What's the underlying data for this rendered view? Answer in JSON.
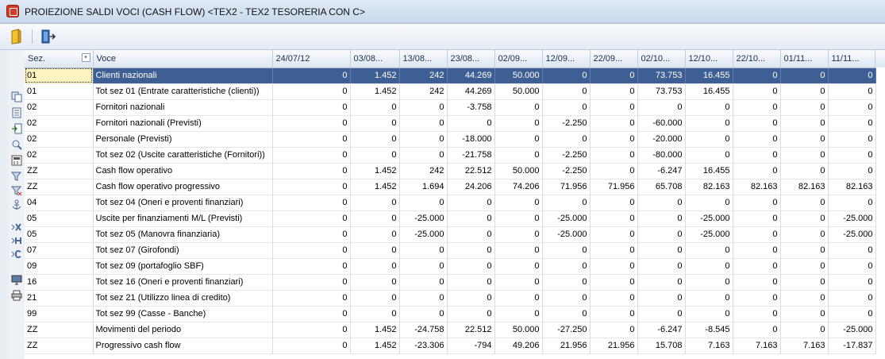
{
  "window": {
    "title": "PROIEZIONE SALDI VOCI (CASH FLOW) <TEX2 - TEX2 TESORERIA CON C>"
  },
  "toolbar": {
    "buttons": [
      "open-folder-icon",
      "exit-door-icon"
    ]
  },
  "grid": {
    "columns": [
      "Sez.",
      "Voce",
      "24/07/12",
      "03/08...",
      "13/08...",
      "23/08...",
      "02/09...",
      "12/09...",
      "22/09...",
      "02/10...",
      "12/10...",
      "22/10...",
      "01/11...",
      "11/11..."
    ],
    "rows": [
      [
        "01",
        "Clienti nazionali",
        "0",
        "1.452",
        "242",
        "44.269",
        "50.000",
        "0",
        "0",
        "73.753",
        "16.455",
        "0",
        "0",
        "0"
      ],
      [
        "01",
        "Tot sez 01 (Entrate caratteristiche (clienti))",
        "0",
        "1.452",
        "242",
        "44.269",
        "50.000",
        "0",
        "0",
        "73.753",
        "16.455",
        "0",
        "0",
        "0"
      ],
      [
        "02",
        "Fornitori nazionali",
        "0",
        "0",
        "0",
        "-3.758",
        "0",
        "0",
        "0",
        "0",
        "0",
        "0",
        "0",
        "0"
      ],
      [
        "02",
        "Fornitori nazionali (Previsti)",
        "0",
        "0",
        "0",
        "0",
        "0",
        "-2.250",
        "0",
        "-60.000",
        "0",
        "0",
        "0",
        "0"
      ],
      [
        "02",
        "Personale (Previsti)",
        "0",
        "0",
        "0",
        "-18.000",
        "0",
        "0",
        "0",
        "-20.000",
        "0",
        "0",
        "0",
        "0"
      ],
      [
        "02",
        "Tot sez 02 (Uscite caratteristiche (Fornitori))",
        "0",
        "0",
        "0",
        "-21.758",
        "0",
        "-2.250",
        "0",
        "-80.000",
        "0",
        "0",
        "0",
        "0"
      ],
      [
        "ZZ",
        "Cash flow operativo",
        "0",
        "1.452",
        "242",
        "22.512",
        "50.000",
        "-2.250",
        "0",
        "-6.247",
        "16.455",
        "0",
        "0",
        "0"
      ],
      [
        "ZZ",
        "Cash flow operativo progressivo",
        "0",
        "1.452",
        "1.694",
        "24.206",
        "74.206",
        "71.956",
        "71.956",
        "65.708",
        "82.163",
        "82.163",
        "82.163",
        "82.163"
      ],
      [
        "04",
        "Tot sez 04 (Oneri e proventi finanziari)",
        "0",
        "0",
        "0",
        "0",
        "0",
        "0",
        "0",
        "0",
        "0",
        "0",
        "0",
        "0"
      ],
      [
        "05",
        "Uscite per finanziamenti M/L (Previsti)",
        "0",
        "0",
        "-25.000",
        "0",
        "0",
        "-25.000",
        "0",
        "0",
        "-25.000",
        "0",
        "0",
        "-25.000"
      ],
      [
        "05",
        "Tot sez 05 (Manovra finanziaria)",
        "0",
        "0",
        "-25.000",
        "0",
        "0",
        "-25.000",
        "0",
        "0",
        "-25.000",
        "0",
        "0",
        "-25.000"
      ],
      [
        "07",
        "Tot sez 07 (Girofondi)",
        "0",
        "0",
        "0",
        "0",
        "0",
        "0",
        "0",
        "0",
        "0",
        "0",
        "0",
        "0"
      ],
      [
        "09",
        "Tot sez 09 (portafoglio SBF)",
        "0",
        "0",
        "0",
        "0",
        "0",
        "0",
        "0",
        "0",
        "0",
        "0",
        "0",
        "0"
      ],
      [
        "16",
        "Tot sez 16 (Oneri e proventi finanziari)",
        "0",
        "0",
        "0",
        "0",
        "0",
        "0",
        "0",
        "0",
        "0",
        "0",
        "0",
        "0"
      ],
      [
        "21",
        "Tot sez 21 (Utilizzo linea di credito)",
        "0",
        "0",
        "0",
        "0",
        "0",
        "0",
        "0",
        "0",
        "0",
        "0",
        "0",
        "0"
      ],
      [
        "99",
        "Tot sez 99 (Casse - Banche)",
        "0",
        "0",
        "0",
        "0",
        "0",
        "0",
        "0",
        "0",
        "0",
        "0",
        "0",
        "0"
      ],
      [
        "ZZ",
        "Movimenti del periodo",
        "0",
        "1.452",
        "-24.758",
        "22.512",
        "50.000",
        "-27.250",
        "0",
        "-6.247",
        "-8.545",
        "0",
        "0",
        "-25.000"
      ],
      [
        "ZZ",
        "Progressivo cash flow",
        "0",
        "1.452",
        "-23.306",
        "-794",
        "49.206",
        "21.956",
        "21.956",
        "15.708",
        "7.163",
        "7.163",
        "7.163",
        "-17.837"
      ]
    ],
    "selected_row": 0
  },
  "side_icons": [
    "copy-icon",
    "list-icon",
    "export-icon",
    "zoom-icon",
    "calculator-icon",
    "filter-icon",
    "filter-clear-icon",
    "anchor-icon",
    "delete-column-icon",
    "hide-column-icon",
    "column-icon",
    "monitor-icon",
    "print-icon"
  ]
}
